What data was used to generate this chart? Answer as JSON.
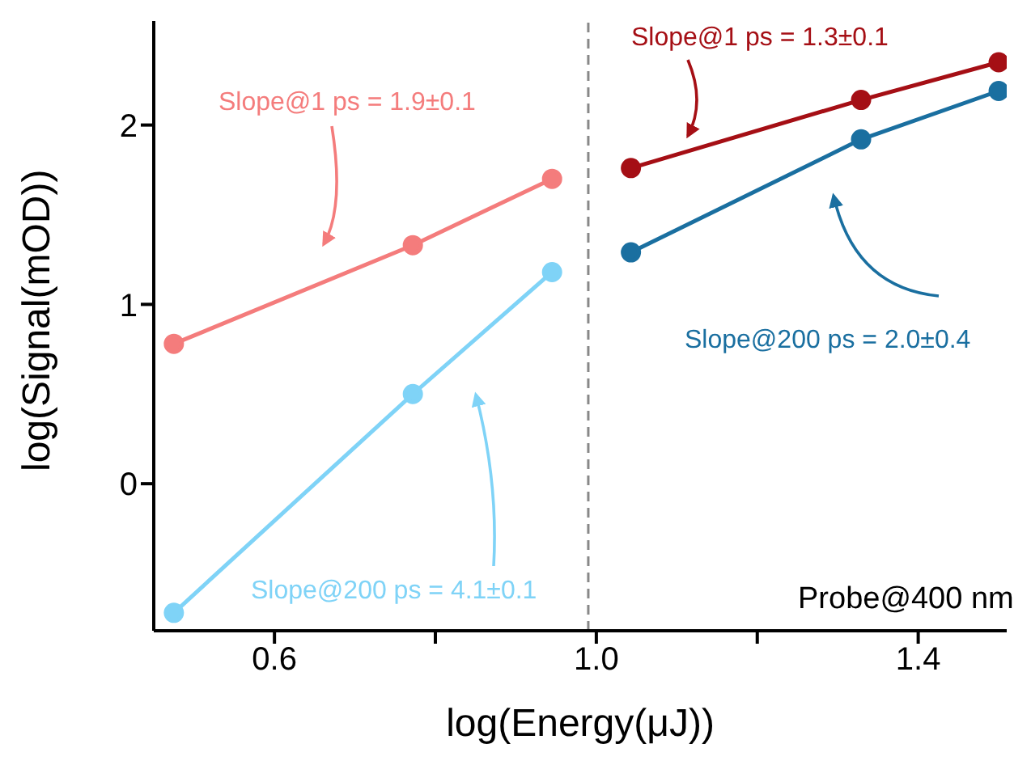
{
  "chart_data": {
    "type": "line",
    "xlabel": "log(Energy(μJ))",
    "ylabel": "log(Signal(mOD))",
    "series": [
      {
        "color": "#f47c7c",
        "x": [
          0.475,
          0.772,
          0.945
        ],
        "values": [
          0.78,
          1.33,
          1.7
        ]
      },
      {
        "color": "#7fd3f7",
        "x": [
          0.475,
          0.772,
          0.945
        ],
        "values": [
          -0.72,
          0.5,
          1.18
        ]
      },
      {
        "color": "#a50f15",
        "x": [
          1.043,
          1.329,
          1.5
        ],
        "values": [
          1.76,
          2.14,
          2.35
        ]
      },
      {
        "color": "#1a6fa0",
        "x": [
          1.043,
          1.329,
          1.5
        ],
        "values": [
          1.29,
          1.92,
          2.19
        ]
      }
    ],
    "xlim": [
      0.45,
      1.51
    ],
    "xticks": [
      0.6,
      {
        "value": 0.8,
        "label": null
      },
      {
        "value": 1,
        "label": "1.0"
      },
      {
        "value": 1.2,
        "label": null
      },
      1.4
    ],
    "ylim": [
      -0.82,
      2.58
    ],
    "yticks": [
      0,
      1,
      2
    ],
    "ref_lines": [
      {
        "axis": "x",
        "value": 0.99,
        "color": "#888888",
        "line_style": "dashed"
      }
    ],
    "annotations": [
      "Slope@1 ps = 1.9±0.1",
      "Slope@200 ps = 4.1±0.1",
      "Slope@1 ps = 1.3±0.1",
      "Slope@200 ps = 2.0±0.4",
      "Probe@400 nm"
    ],
    "marker": "circle",
    "line_style": "solid",
    "grid": false
  }
}
